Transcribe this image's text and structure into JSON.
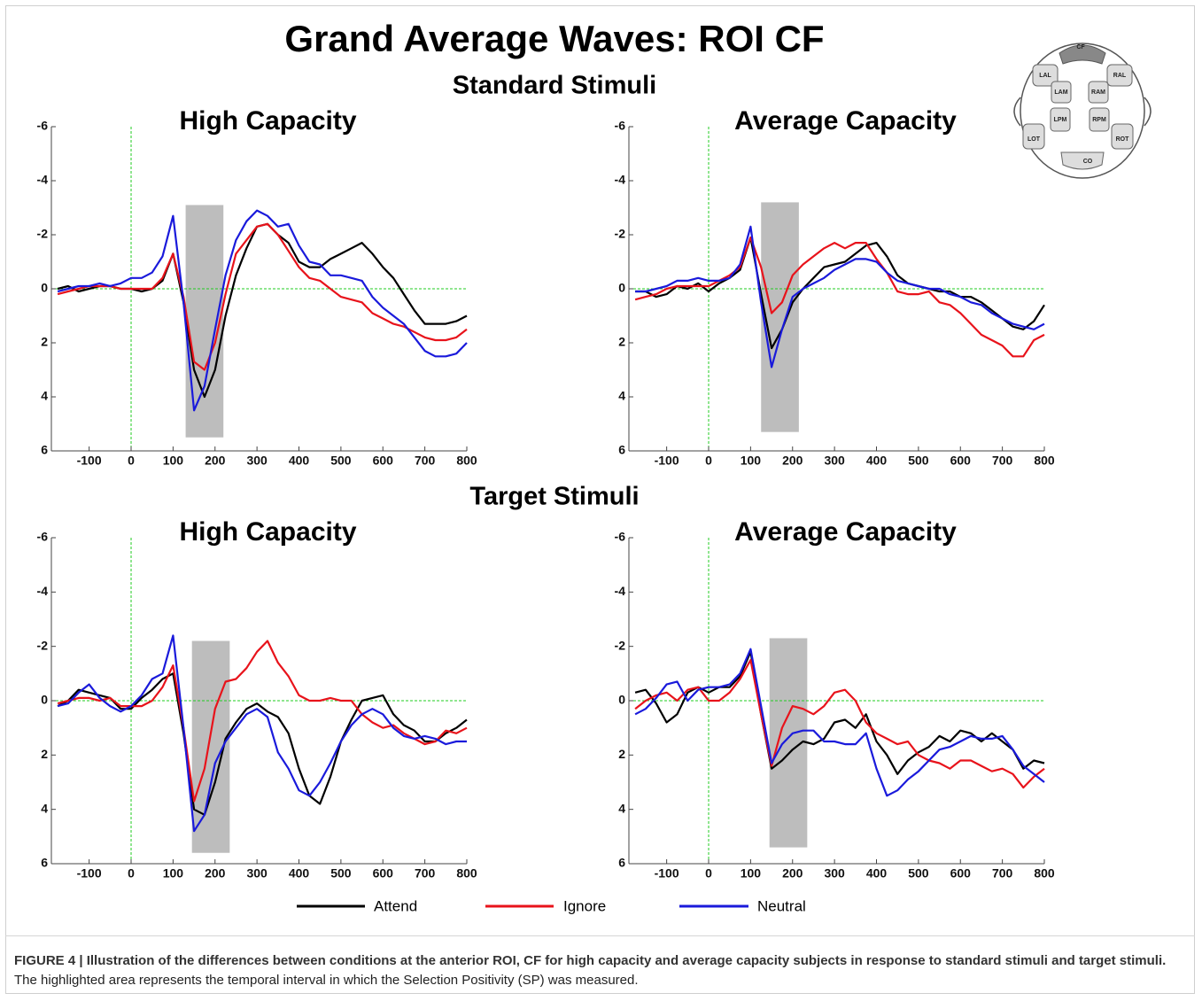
{
  "title": "Grand Average Waves: ROI CF",
  "subtitles": [
    "Standard Stimuli",
    "Target Stimuli"
  ],
  "head_map": {
    "labels": [
      "CF",
      "LAL",
      "RAL",
      "LAM",
      "RAM",
      "LPM",
      "RPM",
      "LOT",
      "ROT",
      "CO"
    ]
  },
  "caption": {
    "bold": "FIGURE 4 | Illustration of the differences between conditions at the anterior ROI, CF for high capacity and average capacity subjects in response to standard stimuli and target stimuli.",
    "text": "The highlighted area represents the temporal interval in which the Selection Positivity (SP) was measured."
  },
  "chart_data": [
    {
      "type": "line",
      "title": "High Capacity",
      "xlim": [
        -190,
        800
      ],
      "ylim": [
        6,
        -6
      ],
      "xticks": [
        -100,
        0,
        100,
        200,
        300,
        400,
        500,
        600,
        700,
        800
      ],
      "yticks": [
        -6,
        -4,
        -2,
        0,
        2,
        4,
        6
      ],
      "highlight_x": [
        130,
        220
      ],
      "highlight_y": [
        5.5,
        -3.1
      ],
      "highlight_color": "#bdbdbd",
      "zero_line_color": "#22cc22",
      "x": [
        -175,
        -150,
        -125,
        -100,
        -75,
        -50,
        -25,
        0,
        25,
        50,
        75,
        100,
        125,
        150,
        175,
        200,
        225,
        250,
        275,
        300,
        325,
        350,
        375,
        400,
        425,
        450,
        475,
        500,
        525,
        550,
        575,
        600,
        625,
        650,
        675,
        700,
        725,
        750,
        775,
        800
      ],
      "series": [
        {
          "name": "Attend",
          "color": "#000000",
          "values": [
            0,
            -0.1,
            0.1,
            0,
            -0.1,
            -0.1,
            0,
            0,
            0.1,
            0,
            -0.3,
            -1.3,
            0.5,
            3.0,
            4.0,
            3.0,
            1.0,
            -0.5,
            -1.5,
            -2.3,
            -2.4,
            -2.0,
            -1.7,
            -1.0,
            -0.8,
            -0.8,
            -1.1,
            -1.3,
            -1.5,
            -1.7,
            -1.3,
            -0.8,
            -0.4,
            0.2,
            0.8,
            1.3,
            1.3,
            1.3,
            1.2,
            1.0
          ]
        },
        {
          "name": "Ignore",
          "color": "#e8131b",
          "values": [
            0.2,
            0.1,
            0,
            -0.1,
            -0.1,
            -0.1,
            0,
            0,
            0,
            0,
            -0.4,
            -1.3,
            0.3,
            2.7,
            3.0,
            2.0,
            0.2,
            -1.3,
            -1.8,
            -2.3,
            -2.4,
            -2.0,
            -1.4,
            -0.8,
            -0.4,
            -0.3,
            0,
            0.3,
            0.4,
            0.5,
            0.9,
            1.1,
            1.3,
            1.4,
            1.6,
            1.8,
            1.9,
            1.9,
            1.8,
            1.5
          ]
        },
        {
          "name": "Neutral",
          "color": "#1a1adb",
          "values": [
            0.1,
            0,
            -0.1,
            -0.1,
            -0.2,
            -0.1,
            -0.2,
            -0.4,
            -0.4,
            -0.6,
            -1.2,
            -2.7,
            0.5,
            4.5,
            3.6,
            1.5,
            -0.5,
            -1.8,
            -2.5,
            -2.9,
            -2.7,
            -2.3,
            -2.4,
            -1.6,
            -1.0,
            -0.9,
            -0.5,
            -0.5,
            -0.4,
            -0.3,
            0.3,
            0.7,
            1.0,
            1.3,
            1.8,
            2.3,
            2.5,
            2.5,
            2.4,
            2.0
          ]
        }
      ]
    },
    {
      "type": "line",
      "title": "Average Capacity",
      "xlim": [
        -190,
        800
      ],
      "ylim": [
        6,
        -6
      ],
      "xticks": [
        -100,
        0,
        100,
        200,
        300,
        400,
        500,
        600,
        700,
        800
      ],
      "yticks": [
        -6,
        -4,
        -2,
        0,
        2,
        4,
        6
      ],
      "highlight_x": [
        125,
        215
      ],
      "highlight_y": [
        5.3,
        -3.2
      ],
      "highlight_color": "#bdbdbd",
      "zero_line_color": "#22cc22",
      "x": [
        -175,
        -150,
        -125,
        -100,
        -75,
        -50,
        -25,
        0,
        25,
        50,
        75,
        100,
        125,
        150,
        175,
        200,
        225,
        250,
        275,
        300,
        325,
        350,
        375,
        400,
        425,
        450,
        475,
        500,
        525,
        550,
        575,
        600,
        625,
        650,
        675,
        700,
        725,
        750,
        775,
        800
      ],
      "series": [
        {
          "name": "Attend",
          "color": "#000000",
          "values": [
            0.1,
            0.1,
            0.3,
            0.2,
            -0.1,
            0,
            -0.2,
            0.1,
            -0.2,
            -0.4,
            -0.7,
            -1.9,
            0.2,
            2.2,
            1.5,
            0.5,
            0,
            -0.4,
            -0.8,
            -0.9,
            -1.0,
            -1.3,
            -1.6,
            -1.7,
            -1.2,
            -0.5,
            -0.2,
            -0.1,
            0,
            0.1,
            0.1,
            0.3,
            0.3,
            0.5,
            0.8,
            1.1,
            1.4,
            1.5,
            1.2,
            0.6
          ]
        },
        {
          "name": "Ignore",
          "color": "#e8131b",
          "values": [
            0.4,
            0.3,
            0.2,
            0,
            -0.1,
            -0.1,
            -0.1,
            -0.1,
            -0.3,
            -0.5,
            -0.8,
            -1.9,
            -0.8,
            0.9,
            0.5,
            -0.5,
            -0.9,
            -1.2,
            -1.5,
            -1.7,
            -1.5,
            -1.7,
            -1.7,
            -1.1,
            -0.6,
            0.1,
            0.2,
            0.2,
            0.1,
            0.5,
            0.6,
            0.9,
            1.3,
            1.7,
            1.9,
            2.1,
            2.5,
            2.5,
            1.9,
            1.7
          ]
        },
        {
          "name": "Neutral",
          "color": "#1a1adb",
          "values": [
            0.1,
            0.1,
            0,
            -0.1,
            -0.3,
            -0.3,
            -0.4,
            -0.3,
            -0.3,
            -0.4,
            -0.9,
            -2.3,
            0.5,
            2.9,
            1.5,
            0.3,
            0,
            -0.2,
            -0.4,
            -0.7,
            -0.9,
            -1.1,
            -1.1,
            -1.0,
            -0.6,
            -0.3,
            -0.2,
            -0.1,
            0,
            0,
            0.2,
            0.3,
            0.5,
            0.6,
            0.9,
            1.1,
            1.3,
            1.4,
            1.5,
            1.3
          ]
        }
      ]
    },
    {
      "type": "line",
      "title": "High Capacity",
      "xlim": [
        -190,
        800
      ],
      "ylim": [
        6,
        -6
      ],
      "xticks": [
        -100,
        0,
        100,
        200,
        300,
        400,
        500,
        600,
        700,
        800
      ],
      "yticks": [
        -6,
        -4,
        -2,
        0,
        2,
        4,
        6
      ],
      "highlight_x": [
        145,
        235
      ],
      "highlight_y": [
        5.6,
        -2.2
      ],
      "highlight_color": "#bdbdbd",
      "zero_line_color": "#22cc22",
      "x": [
        -175,
        -150,
        -125,
        -100,
        -75,
        -50,
        -25,
        0,
        25,
        50,
        75,
        100,
        125,
        150,
        175,
        200,
        225,
        250,
        275,
        300,
        325,
        350,
        375,
        400,
        425,
        450,
        475,
        500,
        525,
        550,
        575,
        600,
        625,
        650,
        675,
        700,
        725,
        750,
        775,
        800
      ],
      "series": [
        {
          "name": "Attend",
          "color": "#000000",
          "values": [
            0.2,
            0,
            -0.4,
            -0.3,
            -0.2,
            -0.1,
            0.3,
            0.3,
            -0.1,
            -0.4,
            -0.8,
            -1.0,
            1.2,
            4.0,
            4.2,
            3.0,
            1.4,
            0.8,
            0.3,
            0.1,
            0.4,
            0.6,
            1.2,
            2.5,
            3.5,
            3.8,
            2.8,
            1.5,
            0.7,
            0,
            -0.1,
            -0.2,
            0.5,
            0.9,
            1.1,
            1.5,
            1.5,
            1.2,
            1.0,
            0.7
          ]
        },
        {
          "name": "Ignore",
          "color": "#e8131b",
          "values": [
            0.1,
            0,
            -0.1,
            -0.1,
            0,
            -0.1,
            0.2,
            0.2,
            0.2,
            0,
            -0.5,
            -1.3,
            1.0,
            3.7,
            2.5,
            0.3,
            -0.7,
            -0.8,
            -1.2,
            -1.8,
            -2.2,
            -1.4,
            -0.9,
            -0.2,
            0,
            0,
            -0.1,
            0,
            0,
            0.5,
            0.8,
            1.0,
            0.9,
            1.2,
            1.4,
            1.6,
            1.5,
            1.1,
            1.2,
            1.0
          ]
        },
        {
          "name": "Neutral",
          "color": "#1a1adb",
          "values": [
            0.2,
            0.1,
            -0.3,
            -0.6,
            -0.1,
            0.2,
            0.4,
            0.2,
            -0.2,
            -0.8,
            -1.0,
            -2.4,
            1.0,
            4.8,
            4.2,
            2.3,
            1.5,
            1.0,
            0.5,
            0.3,
            0.6,
            1.9,
            2.5,
            3.3,
            3.5,
            3.0,
            2.3,
            1.5,
            0.9,
            0.5,
            0.3,
            0.5,
            1.0,
            1.3,
            1.4,
            1.3,
            1.4,
            1.6,
            1.5,
            1.5
          ]
        }
      ]
    },
    {
      "type": "line",
      "title": "Average Capacity",
      "xlim": [
        -190,
        800
      ],
      "ylim": [
        6,
        -6
      ],
      "xticks": [
        -100,
        0,
        100,
        200,
        300,
        400,
        500,
        600,
        700,
        800
      ],
      "yticks": [
        -6,
        -4,
        -2,
        0,
        2,
        4,
        6
      ],
      "highlight_x": [
        145,
        235
      ],
      "highlight_y": [
        5.4,
        -2.3
      ],
      "highlight_color": "#bdbdbd",
      "zero_line_color": "#22cc22",
      "x": [
        -175,
        -150,
        -125,
        -100,
        -75,
        -50,
        -25,
        0,
        25,
        50,
        75,
        100,
        125,
        150,
        175,
        200,
        225,
        250,
        275,
        300,
        325,
        350,
        375,
        400,
        425,
        450,
        475,
        500,
        525,
        550,
        575,
        600,
        625,
        650,
        675,
        700,
        725,
        750,
        775,
        800
      ],
      "series": [
        {
          "name": "Attend",
          "color": "#000000",
          "values": [
            -0.3,
            -0.4,
            0.1,
            0.8,
            0.5,
            -0.3,
            -0.5,
            -0.3,
            -0.5,
            -0.5,
            -0.9,
            -1.8,
            0.5,
            2.5,
            2.2,
            1.8,
            1.5,
            1.6,
            1.4,
            0.8,
            0.7,
            1.0,
            0.5,
            1.5,
            2.0,
            2.7,
            2.2,
            1.9,
            1.7,
            1.3,
            1.5,
            1.1,
            1.2,
            1.5,
            1.2,
            1.5,
            1.8,
            2.5,
            2.2,
            2.3
          ]
        },
        {
          "name": "Ignore",
          "color": "#e8131b",
          "values": [
            0.3,
            0,
            -0.2,
            -0.3,
            0,
            -0.4,
            -0.5,
            0,
            0,
            -0.3,
            -0.8,
            -1.5,
            0.5,
            2.4,
            1.0,
            0.2,
            0.3,
            0.5,
            0.2,
            -0.3,
            -0.4,
            0,
            0.8,
            1.2,
            1.4,
            1.6,
            1.5,
            2.0,
            2.2,
            2.3,
            2.5,
            2.2,
            2.2,
            2.4,
            2.6,
            2.5,
            2.7,
            3.2,
            2.8,
            2.5
          ]
        },
        {
          "name": "Neutral",
          "color": "#1a1adb",
          "values": [
            0.5,
            0.3,
            -0.1,
            -0.6,
            -0.7,
            0,
            -0.4,
            -0.5,
            -0.5,
            -0.6,
            -1.0,
            -1.9,
            0.2,
            2.3,
            1.6,
            1.2,
            1.1,
            1.1,
            1.5,
            1.5,
            1.6,
            1.6,
            1.2,
            2.5,
            3.5,
            3.3,
            2.9,
            2.6,
            2.2,
            1.8,
            1.7,
            1.5,
            1.3,
            1.4,
            1.4,
            1.3,
            1.8,
            2.4,
            2.7,
            3.0
          ]
        }
      ]
    }
  ]
}
